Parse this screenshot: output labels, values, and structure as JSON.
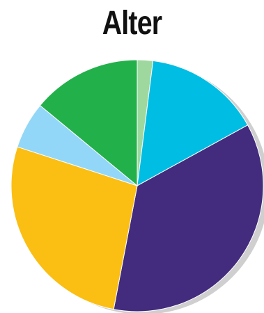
{
  "chart_data": {
    "type": "pie",
    "title": "Alter",
    "series": [
      {
        "values": [
          2,
          15,
          36,
          27,
          6,
          14
        ],
        "colors": [
          "#9ed89e",
          "#00bde3",
          "#432b7d",
          "#fbbe13",
          "#92d7f7",
          "#22b04a"
        ]
      }
    ],
    "start_angle_deg": 0,
    "direction": "clockwise",
    "shadow": true,
    "legend": "none"
  }
}
